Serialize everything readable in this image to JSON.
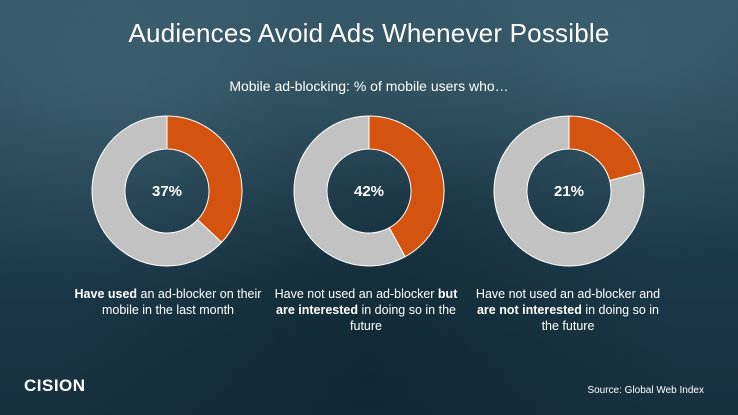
{
  "title": "Audiences Avoid Ads Whenever Possible",
  "subtitle": "Mobile ad-blocking: % of mobile users who…",
  "chart_data": [
    {
      "type": "pie",
      "categories": [
        "Have used an ad-blocker on their mobile in the last month",
        ""
      ],
      "values": [
        37,
        63
      ],
      "center_label": "37%",
      "caption_parts": [
        {
          "text": "Have used",
          "bold": true
        },
        {
          "text": " an ad-blocker on their mobile in the last month",
          "bold": false
        }
      ],
      "colors": [
        "#d4540f",
        "#c2c2c2"
      ]
    },
    {
      "type": "pie",
      "categories": [
        "Have not used an ad-blocker but are interested in doing so in the future",
        ""
      ],
      "values": [
        42,
        58
      ],
      "center_label": "42%",
      "caption_parts": [
        {
          "text": "Have not used an ad-blocker ",
          "bold": false
        },
        {
          "text": "but are interested",
          "bold": true
        },
        {
          "text": " in doing so in the future",
          "bold": false
        }
      ],
      "colors": [
        "#d4540f",
        "#c2c2c2"
      ]
    },
    {
      "type": "pie",
      "categories": [
        "Have not used an ad-blocker and are not interested in doing so in the future",
        ""
      ],
      "values": [
        21,
        79
      ],
      "center_label": "21%",
      "caption_parts": [
        {
          "text": "Have not used an ad-blocker and ",
          "bold": false
        },
        {
          "text": "are not interested",
          "bold": true
        },
        {
          "text": " in doing so in the future",
          "bold": false
        }
      ],
      "colors": [
        "#d4540f",
        "#c2c2c2"
      ]
    }
  ],
  "logo": "CISION",
  "source": "Source:  Global Web Index"
}
